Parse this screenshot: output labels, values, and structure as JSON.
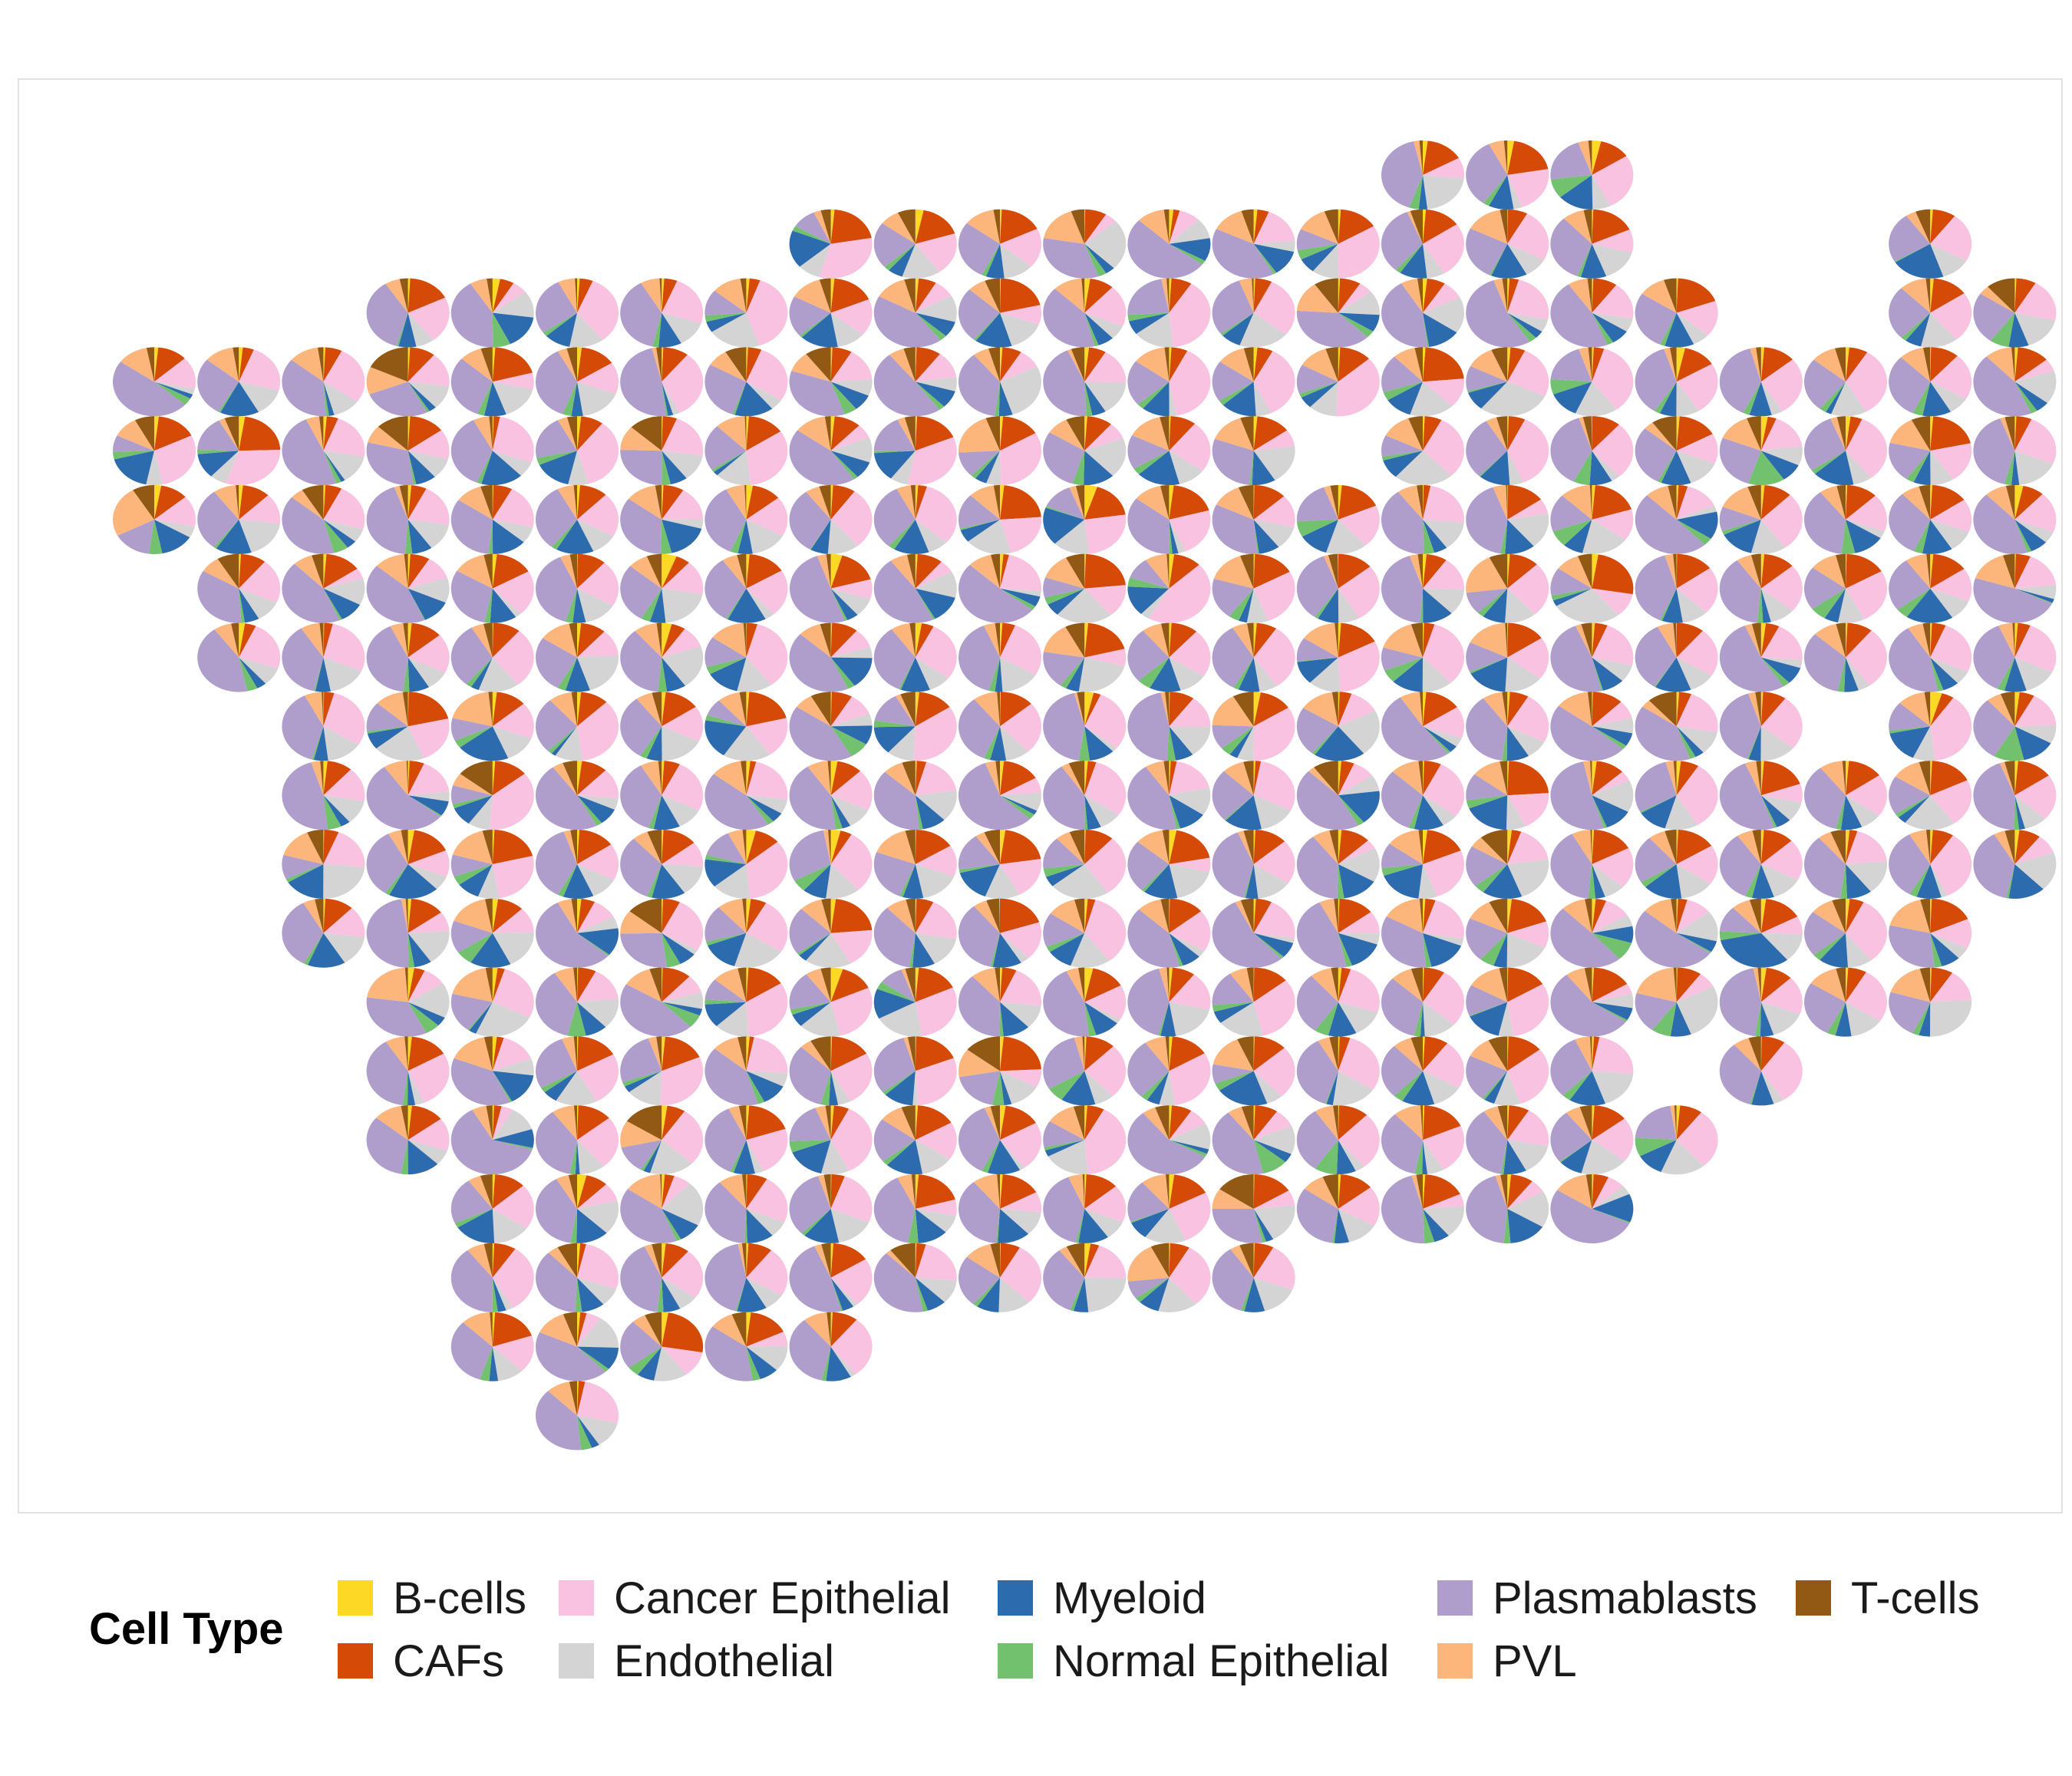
{
  "chart_data": {
    "type": "spatial-pie",
    "title": "",
    "legend": {
      "title": "Cell Type",
      "position": "bottom",
      "items": [
        {
          "name": "B-cells",
          "color": "#FDD825"
        },
        {
          "name": "CAFs",
          "color": "#D44A06"
        },
        {
          "name": "Cancer Epithelial",
          "color": "#F9C2E0"
        },
        {
          "name": "Endothelial",
          "color": "#D4D4D4"
        },
        {
          "name": "Myeloid",
          "color": "#2C6BAD"
        },
        {
          "name": "Normal Epithelial",
          "color": "#71C16E"
        },
        {
          "name": "Plasmablasts",
          "color": "#AF9DCB"
        },
        {
          "name": "PVL",
          "color": "#FCB57B"
        },
        {
          "name": "T-cells",
          "color": "#925914"
        }
      ]
    },
    "grid": false,
    "panel_border": true,
    "spot_layout": {
      "columns": 23,
      "rows": 19,
      "row_runs": [
        [
          [
            15,
            17
          ]
        ],
        [
          [
            8,
            17
          ],
          [
            21,
            21
          ]
        ],
        [
          [
            3,
            18
          ],
          [
            21,
            22
          ]
        ],
        [
          [
            0,
            18
          ],
          [
            19,
            22
          ]
        ],
        [
          [
            0,
            13
          ],
          [
            15,
            22
          ]
        ],
        [
          [
            0,
            22
          ]
        ],
        [
          [
            1,
            22
          ]
        ],
        [
          [
            1,
            22
          ]
        ],
        [
          [
            2,
            19
          ],
          [
            21,
            22
          ]
        ],
        [
          [
            2,
            22
          ]
        ],
        [
          [
            2,
            22
          ]
        ],
        [
          [
            2,
            21
          ]
        ],
        [
          [
            3,
            21
          ]
        ],
        [
          [
            3,
            17
          ],
          [
            19,
            19
          ]
        ],
        [
          [
            3,
            18
          ]
        ],
        [
          [
            4,
            17
          ]
        ],
        [
          [
            4,
            13
          ]
        ],
        [
          [
            4,
            8
          ]
        ],
        [
          [
            5,
            5
          ]
        ]
      ]
    }
  }
}
